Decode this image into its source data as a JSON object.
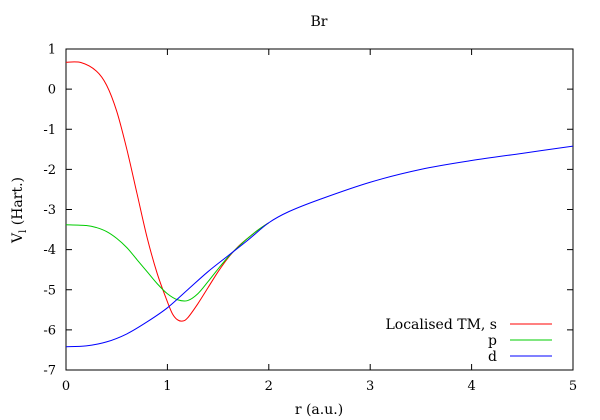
{
  "chart_data": {
    "type": "line",
    "title": "Br",
    "xlabel": "r (a.u.)",
    "ylabel": {
      "main": "V",
      "sub": "l",
      "rest": " (Hart.)"
    },
    "xlim": [
      0,
      5
    ],
    "ylim": [
      -7,
      1
    ],
    "xticks": [
      0,
      1,
      2,
      3,
      4,
      5
    ],
    "yticks": [
      1,
      0,
      -1,
      -2,
      -3,
      -4,
      -5,
      -6,
      -7
    ],
    "grid": false,
    "legend_position": "bottom-right",
    "series": [
      {
        "name": "Localised TM, s",
        "color": "#ff0000",
        "x": [
          0,
          0.15,
          0.3,
          0.4,
          0.5,
          0.6,
          0.7,
          0.8,
          0.9,
          1.0,
          1.05,
          1.1,
          1.15,
          1.2,
          1.3,
          1.4,
          1.5,
          1.6,
          1.7,
          1.8,
          1.9,
          2.0
        ],
        "y": [
          0.67,
          0.66,
          0.45,
          0.1,
          -0.55,
          -1.5,
          -2.6,
          -3.7,
          -4.6,
          -5.3,
          -5.6,
          -5.75,
          -5.78,
          -5.7,
          -5.35,
          -4.95,
          -4.55,
          -4.2,
          -3.92,
          -3.7,
          -3.5,
          -3.33
        ]
      },
      {
        "name": "p",
        "color": "#00cc00",
        "x": [
          0,
          0.2,
          0.3,
          0.4,
          0.5,
          0.6,
          0.7,
          0.8,
          0.9,
          1.0,
          1.1,
          1.2,
          1.3,
          1.4,
          1.5,
          1.6,
          1.7,
          1.8,
          1.9,
          2.0
        ],
        "y": [
          -3.38,
          -3.4,
          -3.45,
          -3.55,
          -3.72,
          -3.95,
          -4.25,
          -4.55,
          -4.85,
          -5.1,
          -5.25,
          -5.27,
          -5.1,
          -4.8,
          -4.48,
          -4.18,
          -3.93,
          -3.7,
          -3.5,
          -3.33
        ]
      },
      {
        "name": "d",
        "color": "#0000ff",
        "x": [
          0,
          0.2,
          0.4,
          0.6,
          0.8,
          1.0,
          1.2,
          1.4,
          1.6,
          1.8,
          2.0,
          2.2,
          2.5,
          3.0,
          3.5,
          4.0,
          4.5,
          5.0
        ],
        "y": [
          -6.42,
          -6.4,
          -6.3,
          -6.1,
          -5.8,
          -5.45,
          -5.0,
          -4.55,
          -4.15,
          -3.75,
          -3.33,
          -3.05,
          -2.75,
          -2.32,
          -2.0,
          -1.78,
          -1.6,
          -1.42
        ]
      }
    ]
  }
}
